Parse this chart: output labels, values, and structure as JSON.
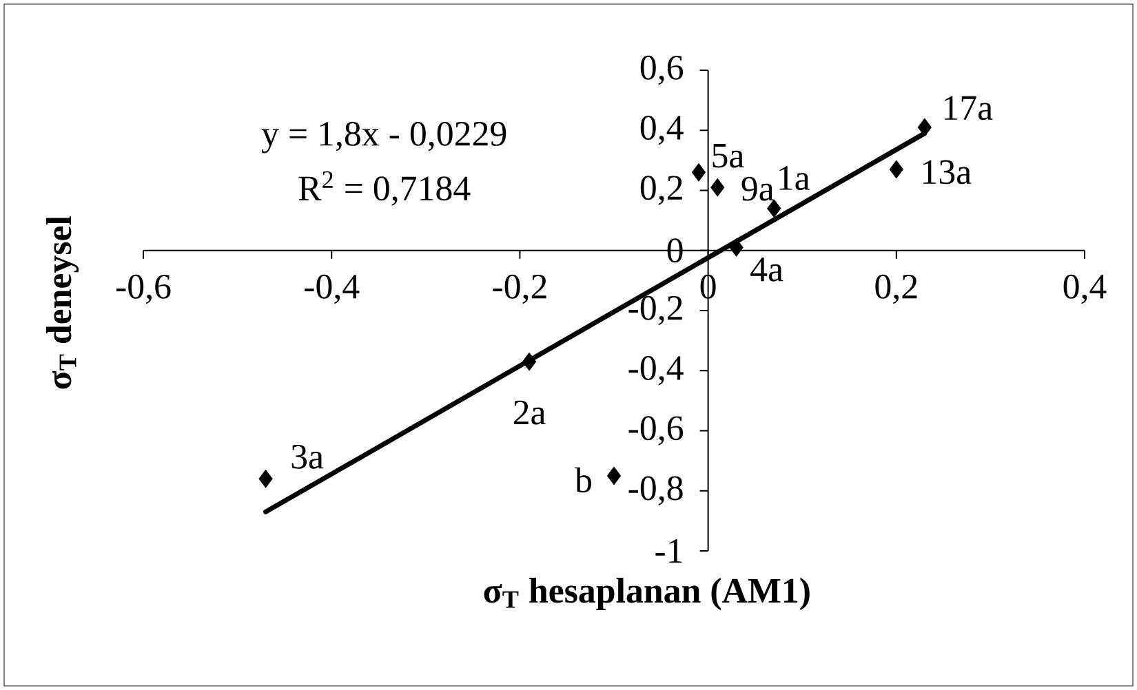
{
  "chart_data": {
    "type": "scatter",
    "xlabel": "σ$_{T}$ hesaplanan (AM1)",
    "ylabel": "σ$_{T}$ deneysel",
    "xlim": [
      -0.6,
      0.4
    ],
    "ylim": [
      -1,
      0.6
    ],
    "xticks": [
      {
        "value": -0.6,
        "label": "-0,6"
      },
      {
        "value": -0.4,
        "label": "-0,4"
      },
      {
        "value": -0.2,
        "label": "-0,2"
      },
      0,
      {
        "value": 0.2,
        "label": "0,2"
      },
      {
        "value": 0.4,
        "label": "0,4"
      }
    ],
    "yticks": [
      -1,
      {
        "value": -0.8,
        "label": "-0,8"
      },
      {
        "value": -0.6,
        "label": "-0,6"
      },
      {
        "value": -0.4,
        "label": "-0,4"
      },
      {
        "value": -0.2,
        "label": "-0,2"
      },
      0,
      {
        "value": 0.2,
        "label": "0,2"
      },
      {
        "value": 0.4,
        "label": "0,4"
      },
      {
        "value": 0.6,
        "label": "0,6"
      }
    ],
    "marker": "diamond",
    "grid": false,
    "series": [
      {
        "color": "#000000",
        "x": [
          -0.47,
          -0.19,
          -0.1,
          -0.01,
          0.01,
          0.07,
          0.03,
          0.2,
          0.23
        ],
        "values": [
          -0.76,
          -0.37,
          -0.75,
          0.26,
          0.21,
          0.14,
          0.01,
          0.27,
          0.41
        ]
      },
      {
        "type": "line",
        "color": "#000000",
        "marker": "none",
        "x": [
          -0.47,
          0.23
        ],
        "values": [
          -0.87,
          0.39
        ]
      }
    ],
    "annotations": [
      "y = 1,8x - 0,0229",
      "R$^{2}$ = 0,7184",
      {
        "text": "3a",
        "x": -0.47,
        "y": -0.76
      },
      {
        "text": "2a",
        "x": -0.19,
        "y": -0.37
      },
      {
        "text": "b",
        "x": -0.1,
        "y": -0.75
      },
      {
        "text": "5a",
        "x": -0.01,
        "y": 0.26
      },
      {
        "text": "9a",
        "x": 0.01,
        "y": 0.21
      },
      {
        "text": "1a",
        "x": 0.07,
        "y": 0.14
      },
      {
        "text": "4a",
        "x": 0.03,
        "y": 0.01
      },
      {
        "text": "13a",
        "x": 0.2,
        "y": 0.27
      },
      {
        "text": "17a",
        "x": 0.23,
        "y": 0.41
      }
    ]
  }
}
